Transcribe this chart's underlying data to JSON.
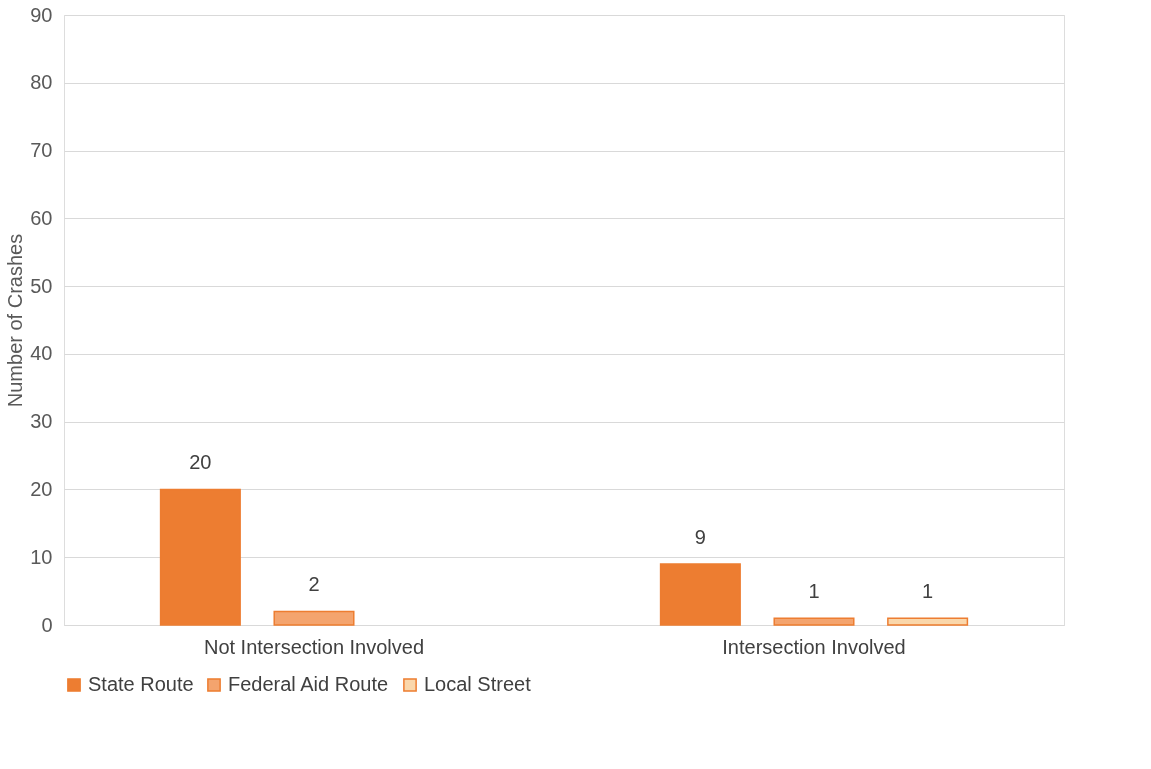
{
  "chart_data": {
    "type": "bar",
    "ylabel": "Number of Crashes",
    "categories": [
      "Not Intersection Involved",
      "Intersection Involved"
    ],
    "series": [
      {
        "name": "State Route",
        "color": "#ed7d31",
        "values": [
          20,
          9
        ]
      },
      {
        "name": "Federal Aid Route",
        "color": "#f4a46e",
        "values": [
          2,
          1
        ]
      },
      {
        "name": "Local Street",
        "color": "#fad7ab",
        "values": [
          null,
          1
        ]
      }
    ],
    "ylim": [
      0,
      90
    ],
    "yticks": [
      0,
      10,
      20,
      30,
      40,
      50,
      60,
      70,
      80,
      90
    ],
    "grid": "y",
    "legend": "bottom",
    "data_labels": true
  }
}
